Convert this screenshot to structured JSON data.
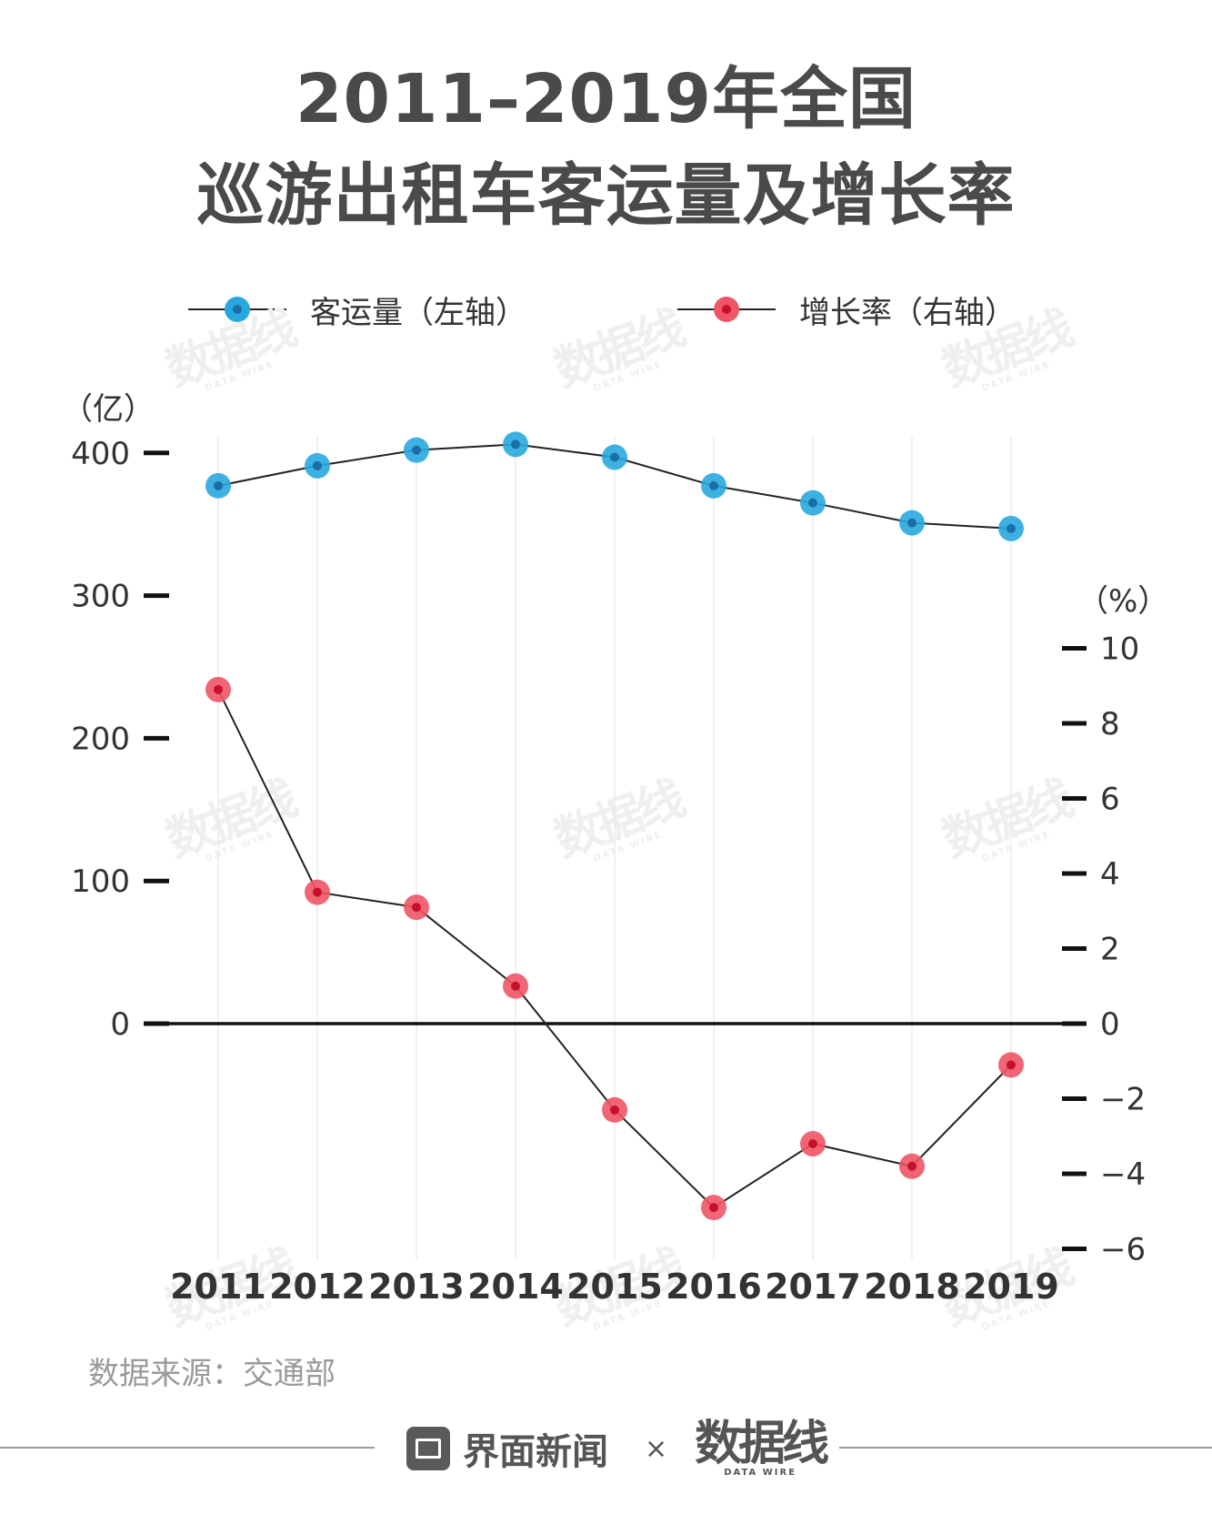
{
  "title": {
    "line1": "2011–2019年全国",
    "line2": "巡游出租车客运量及增长率"
  },
  "legend": {
    "series1": "客运量（左轴）",
    "series2": "增长率（右轴）"
  },
  "source": "数据来源：交通部",
  "footer": {
    "brand": "界面新闻",
    "times": "×",
    "logo": "数据线",
    "logo_sub": "DATA WIRE"
  },
  "watermark": {
    "text": "数据线",
    "sub": "DATA WIRE"
  },
  "colors": {
    "passenger": "#29a8e0",
    "passenger_core": "#1a6fa8",
    "growth": "#ee5566",
    "growth_core": "#c8102e",
    "line": "#222222"
  },
  "chart_data": {
    "type": "line",
    "categories": [
      "2011",
      "2012",
      "2013",
      "2014",
      "2015",
      "2016",
      "2017",
      "2018",
      "2019"
    ],
    "series": [
      {
        "name": "客运量（左轴）",
        "axis": "left",
        "values": [
          377,
          391,
          402,
          406,
          397,
          377,
          365,
          351,
          347
        ]
      },
      {
        "name": "增长率（右轴）",
        "axis": "right",
        "values": [
          8.9,
          3.5,
          3.1,
          1.0,
          -2.3,
          -4.9,
          -3.2,
          -3.8,
          -1.1
        ]
      }
    ],
    "left_axis": {
      "unit_label": "（亿）",
      "ticks": [
        0,
        100,
        200,
        300,
        400
      ],
      "ylim": [
        0,
        400
      ]
    },
    "right_axis": {
      "unit_label": "（%）",
      "ticks": [
        10,
        8,
        6,
        4,
        2,
        0,
        -2,
        -4,
        -6
      ],
      "tick_labels": [
        "10",
        "8",
        "6",
        "4",
        "2",
        "0",
        "−2",
        "−4",
        "−6"
      ],
      "ylim": [
        -6,
        10
      ]
    },
    "grid": "vertical",
    "legend": "top"
  }
}
